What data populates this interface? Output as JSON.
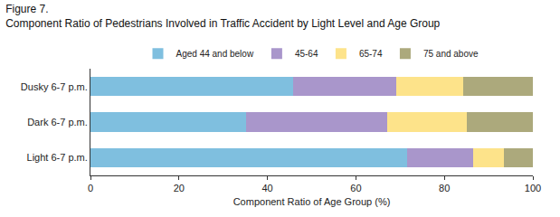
{
  "chart_data": {
    "type": "bar",
    "orientation": "horizontal",
    "stacked": true,
    "title": "Figure 7.",
    "subtitle": "Component Ratio of Pedestrians Involved in Traffic Accident by Light Level and Age Group",
    "x_label": "Component Ratio of Age Group (%)",
    "categories": [
      "Dusky 6-7 p.m.",
      "Dark 6-7 p.m.",
      "Light 6-7 p.m."
    ],
    "series": [
      {
        "name": "Aged 44 and below",
        "color": "#7fbfdf",
        "values": [
          45.8,
          35.2,
          71.5
        ]
      },
      {
        "name": "45-64",
        "color": "#a996cb",
        "values": [
          23.4,
          31.8,
          15.0
        ]
      },
      {
        "name": "65-74",
        "color": "#fde38a",
        "values": [
          15.0,
          18.0,
          7.0
        ]
      },
      {
        "name": "75 and above",
        "color": "#aca97c",
        "values": [
          15.8,
          15.0,
          6.5
        ]
      }
    ],
    "xlim": [
      0,
      100
    ],
    "xticks": [
      0,
      20,
      40,
      60,
      80,
      100
    ],
    "grid": false,
    "legend": "top"
  }
}
